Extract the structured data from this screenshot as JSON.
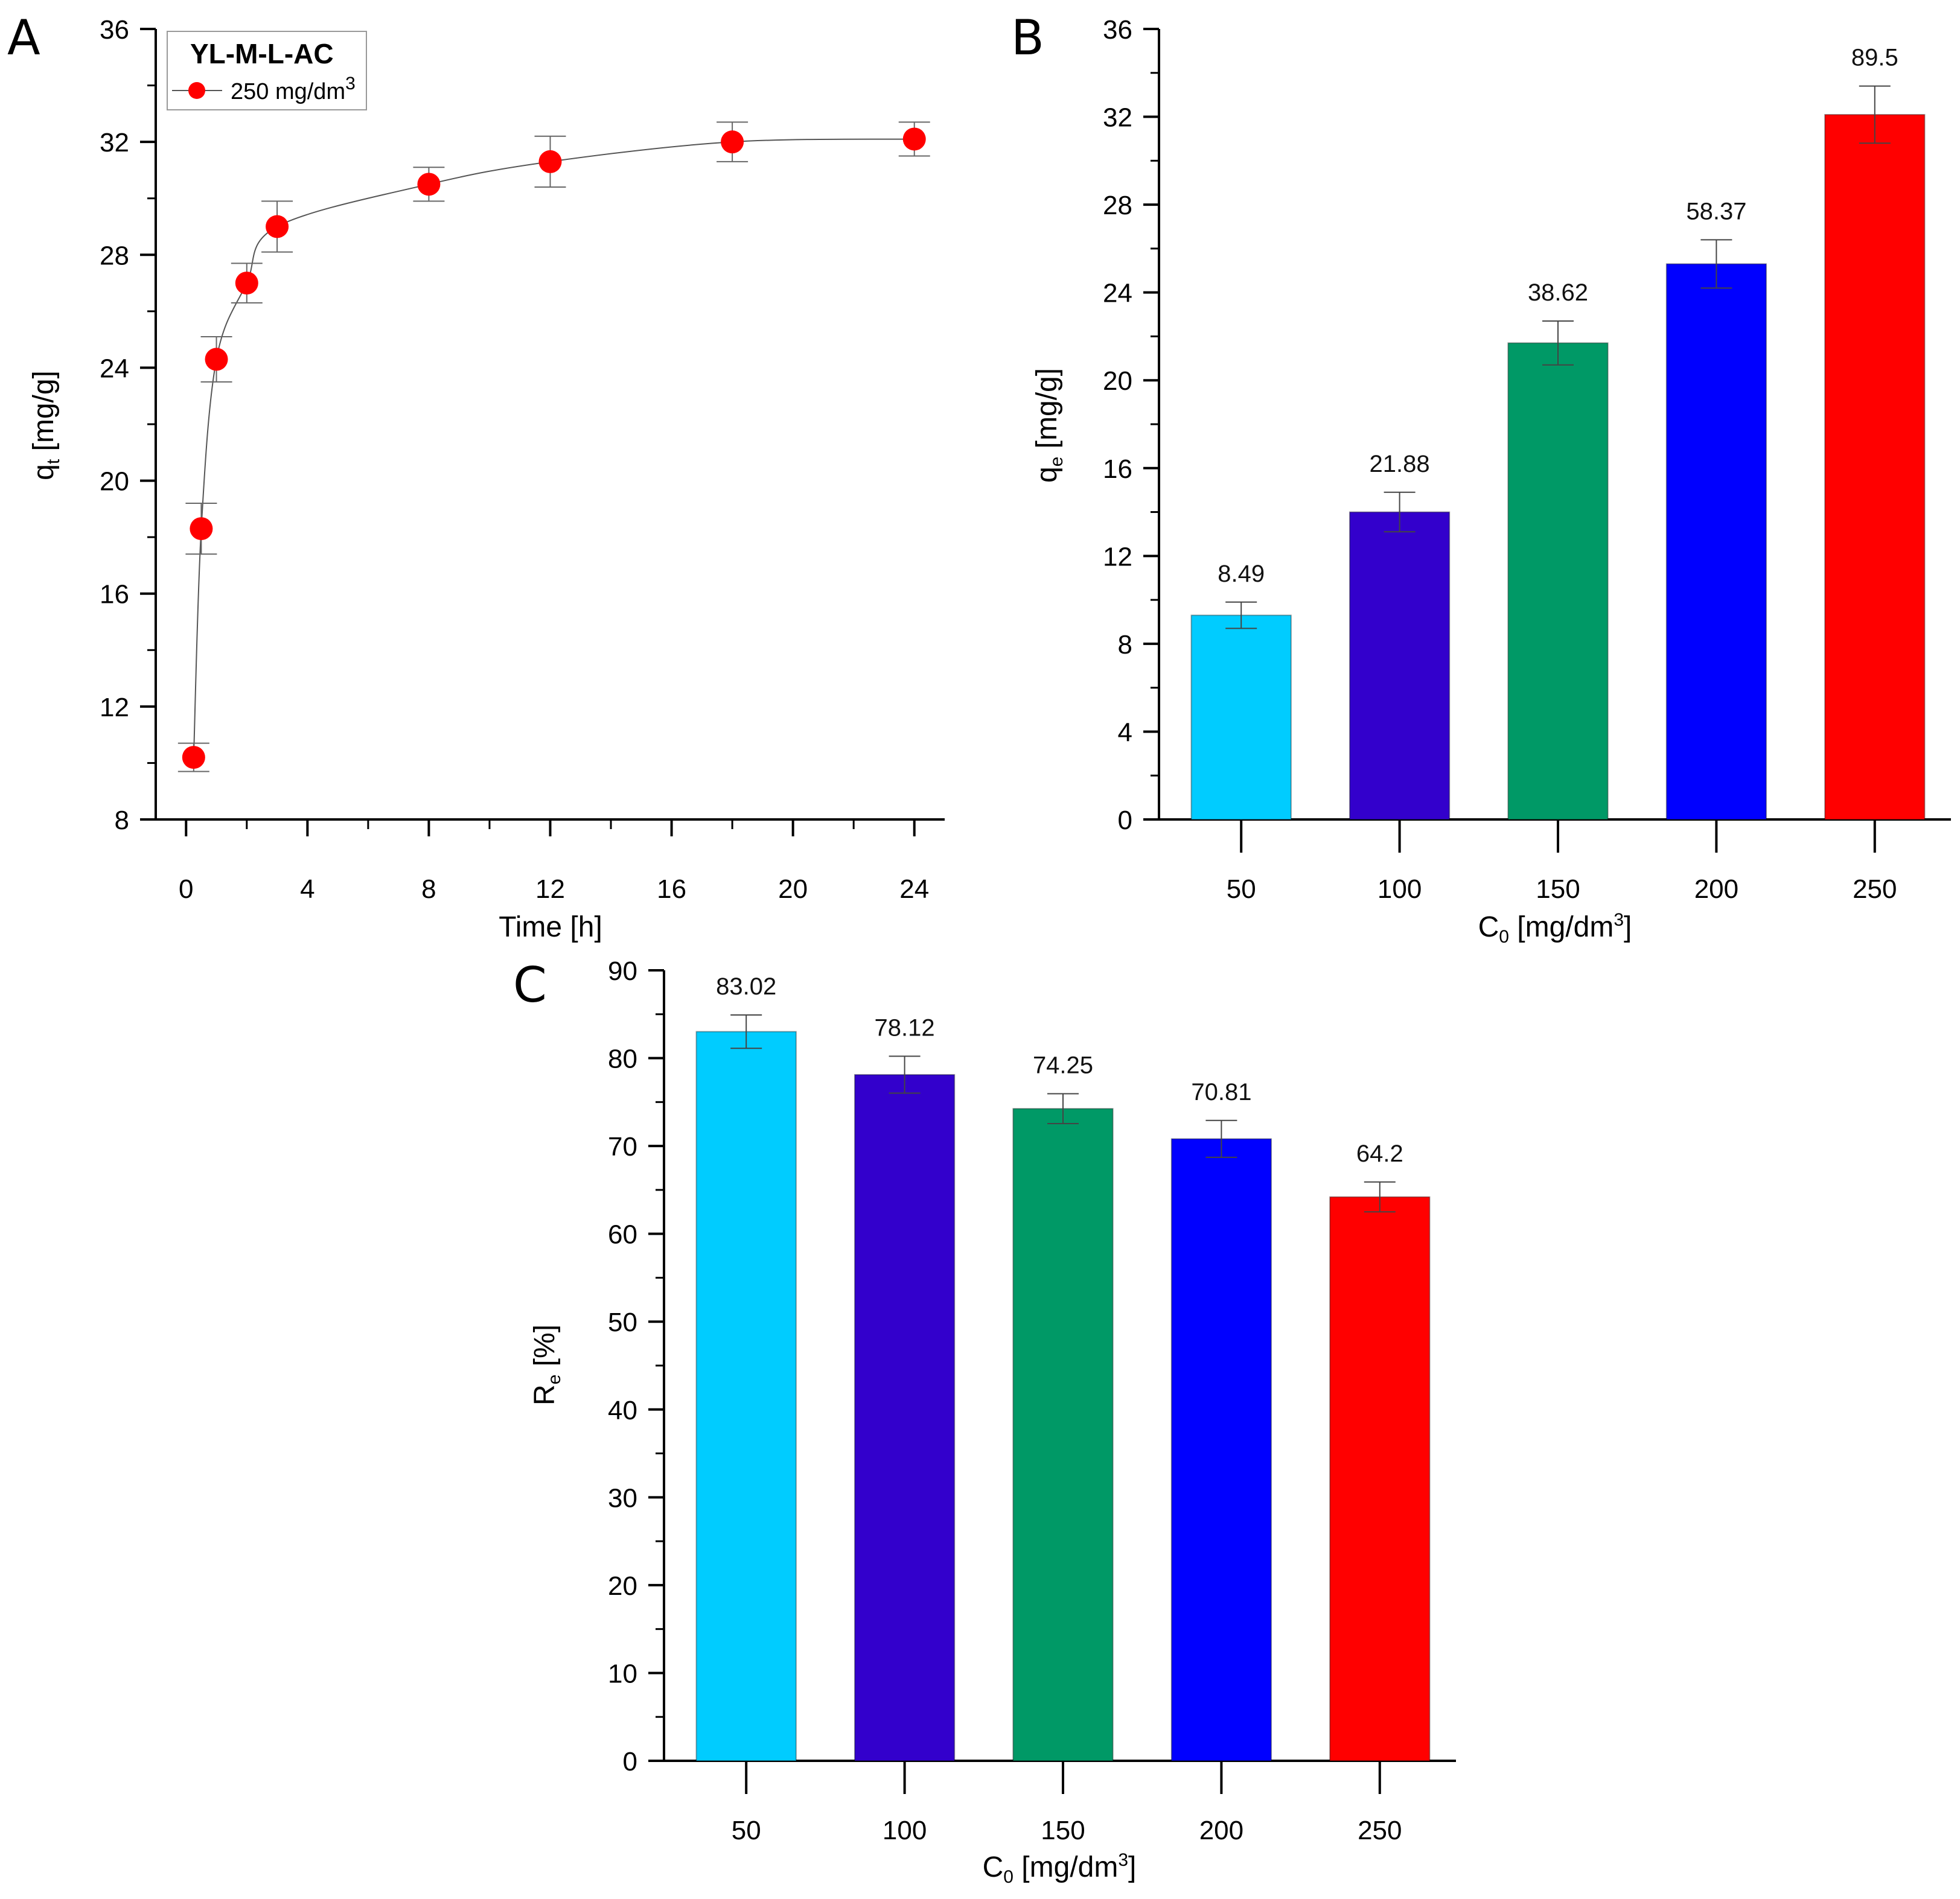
{
  "chart_data": [
    {
      "panel": "A",
      "type": "line",
      "series": [
        {
          "name": "250 mg/dm³",
          "x": [
            0.25,
            0.5,
            1,
            2,
            3,
            8,
            12,
            18,
            24
          ],
          "y": [
            10.2,
            18.3,
            24.3,
            27.0,
            29.0,
            30.5,
            31.3,
            32.0,
            32.1
          ],
          "error": [
            0.5,
            0.9,
            0.8,
            0.7,
            0.9,
            0.6,
            0.9,
            0.7,
            0.6
          ],
          "color": "#ff0000"
        }
      ],
      "legend_title": "YL-M-L-AC",
      "legend_entry": "250 mg/dm",
      "legend_entry_sup": "3",
      "xlabel": "Time [h]",
      "ylabel_main": "q",
      "ylabel_sub": "t",
      "ylabel_unit": " [mg/g]",
      "xlim": [
        -1,
        25
      ],
      "ylim": [
        8,
        36
      ],
      "xticks": [
        "0",
        "4",
        "8",
        "12",
        "16",
        "20",
        "24"
      ],
      "yticks": [
        "8",
        "12",
        "16",
        "20",
        "24",
        "28",
        "32",
        "36"
      ],
      "legend_position": "top-left"
    },
    {
      "panel": "B",
      "type": "bar",
      "categories": [
        "50",
        "100",
        "150",
        "200",
        "250"
      ],
      "values": [
        9.3,
        14.0,
        21.7,
        25.3,
        32.1
      ],
      "errors": [
        0.6,
        0.9,
        1.0,
        1.1,
        1.3
      ],
      "data_labels": [
        "8.49",
        "21.88",
        "38.62",
        "58.37",
        "89.5"
      ],
      "colors": [
        "#00ccff",
        "#3300cc",
        "#009966",
        "#0000ff",
        "#ff0000"
      ],
      "xlabel_main": "C",
      "xlabel_sub": "0",
      "xlabel_unit": " [mg/dm",
      "xlabel_sup": "3",
      "xlabel_end": "]",
      "ylabel_main": "q",
      "ylabel_sub": "e",
      "ylabel_unit": " [mg/g]",
      "ylim": [
        0,
        36
      ],
      "yticks": [
        "0",
        "4",
        "8",
        "12",
        "16",
        "20",
        "24",
        "28",
        "32",
        "36"
      ]
    },
    {
      "panel": "C",
      "type": "bar",
      "categories": [
        "50",
        "100",
        "150",
        "200",
        "250"
      ],
      "values": [
        83.02,
        78.12,
        74.25,
        70.81,
        64.2
      ],
      "errors": [
        1.9,
        2.1,
        1.7,
        2.1,
        1.7
      ],
      "data_labels": [
        "83.02",
        "78.12",
        "74.25",
        "70.81",
        "64.2"
      ],
      "colors": [
        "#00ccff",
        "#3300cc",
        "#009966",
        "#0000ff",
        "#ff0000"
      ],
      "xlabel_main": "C",
      "xlabel_sub": "0",
      "xlabel_unit": " [mg/dm",
      "xlabel_sup": "3",
      "xlabel_end": "]",
      "ylabel_main": "R",
      "ylabel_sub": "e",
      "ylabel_unit": " [%]",
      "ylim": [
        0,
        90
      ],
      "yticks": [
        "0",
        "10",
        "20",
        "30",
        "40",
        "50",
        "60",
        "70",
        "80",
        "90"
      ]
    }
  ]
}
